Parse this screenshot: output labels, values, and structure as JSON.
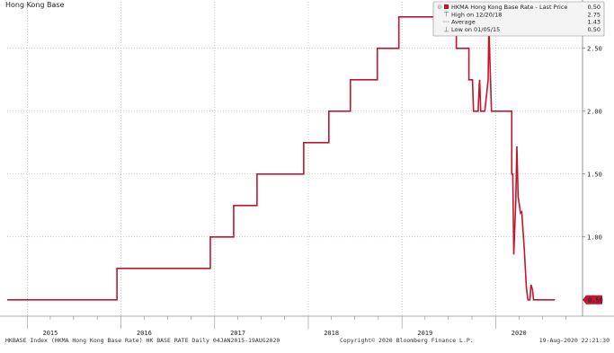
{
  "top_label": "Hong Kong Base",
  "legend": {
    "entries": [
      {
        "name": "HKMA Hong Kong Base Rate - Last Price",
        "value": "0.50",
        "marker": "swatch"
      },
      {
        "name": "High on 12/20/18",
        "value": "2.75",
        "marker": "high-marker-icon"
      },
      {
        "name": "Average",
        "value": "1.43",
        "marker": "average-marker-icon"
      },
      {
        "name": "Low on 01/05/15",
        "value": "0.50",
        "marker": "low-marker-icon"
      }
    ]
  },
  "footer": {
    "left": "HKBASE Index (HKMA Hong Kong Base Rate) HK BASE RATE  Daily 04JAN2015-19AUG2020",
    "center": "Copyright© 2020 Bloomberg Finance L.P.",
    "right": "19-Aug-2020 22:21:30"
  },
  "colors": {
    "series": "#c0172e",
    "grid": "#9a9a9a",
    "last_tag_bg": "#c0172e",
    "last_tag_text": "#ffffff",
    "legend_bg": "#f4f4f4",
    "legend_border": "#8a8a8a"
  },
  "chart_data": {
    "type": "line",
    "title": "",
    "xlabel": "",
    "ylabel": "",
    "xlim": [
      "2014-10-15",
      "2020-12-05"
    ],
    "ylim": [
      0.37,
      2.87
    ],
    "x_ticks": [
      {
        "label": "2015",
        "date": "2015-04-01"
      },
      {
        "label": "2016",
        "date": "2016-04-01"
      },
      {
        "label": "2017",
        "date": "2017-04-01"
      },
      {
        "label": "2018",
        "date": "2018-04-01"
      },
      {
        "label": "2019",
        "date": "2019-04-01"
      },
      {
        "label": "2020",
        "date": "2020-04-01"
      }
    ],
    "y_ticks": [
      {
        "label": "2.50",
        "value": 2.5
      },
      {
        "label": "2.00",
        "value": 2.0
      },
      {
        "label": "1.50",
        "value": 1.5
      },
      {
        "label": "1.00",
        "value": 1.0
      }
    ],
    "last_value_label": "0.50",
    "last_value": 0.5,
    "grid": true,
    "legend_position": "top-right",
    "series": [
      {
        "name": "HKMA Hong Kong Base Rate - Last Price",
        "color": "#c0172e",
        "points": [
          [
            "2014-10-15",
            0.5
          ],
          [
            "2015-12-17",
            0.5
          ],
          [
            "2015-12-17",
            0.75
          ],
          [
            "2016-12-15",
            0.75
          ],
          [
            "2016-12-15",
            1.0
          ],
          [
            "2017-03-16",
            1.0
          ],
          [
            "2017-03-16",
            1.25
          ],
          [
            "2017-06-15",
            1.25
          ],
          [
            "2017-06-15",
            1.5
          ],
          [
            "2017-12-14",
            1.5
          ],
          [
            "2017-12-14",
            1.75
          ],
          [
            "2018-03-22",
            1.75
          ],
          [
            "2018-03-22",
            2.0
          ],
          [
            "2018-06-14",
            2.0
          ],
          [
            "2018-06-14",
            2.25
          ],
          [
            "2018-09-27",
            2.25
          ],
          [
            "2018-09-27",
            2.5
          ],
          [
            "2018-12-20",
            2.5
          ],
          [
            "2018-12-20",
            2.75
          ],
          [
            "2019-08-01",
            2.75
          ],
          [
            "2019-08-01",
            2.5
          ],
          [
            "2019-09-19",
            2.5
          ],
          [
            "2019-09-19",
            2.25
          ],
          [
            "2019-10-03",
            2.25
          ],
          [
            "2019-10-07",
            2.0
          ],
          [
            "2019-10-25",
            2.0
          ],
          [
            "2019-10-29",
            2.2
          ],
          [
            "2019-10-31",
            2.25
          ],
          [
            "2019-11-04",
            2.0
          ],
          [
            "2019-11-20",
            2.0
          ],
          [
            "2019-12-03",
            2.25
          ],
          [
            "2019-12-06",
            2.7
          ],
          [
            "2019-12-10",
            2.4
          ],
          [
            "2019-12-16",
            2.0
          ],
          [
            "2020-02-21",
            2.0
          ],
          [
            "2020-03-04",
            2.0
          ],
          [
            "2020-03-04",
            1.5
          ],
          [
            "2020-03-08",
            1.5
          ],
          [
            "2020-03-12",
            0.86
          ],
          [
            "2020-03-20",
            1.3
          ],
          [
            "2020-03-24",
            1.72
          ],
          [
            "2020-03-29",
            1.32
          ],
          [
            "2020-04-03",
            1.25
          ],
          [
            "2020-04-07",
            1.19
          ],
          [
            "2020-04-12",
            1.2
          ],
          [
            "2020-04-22",
            0.9
          ],
          [
            "2020-04-30",
            0.6
          ],
          [
            "2020-05-06",
            0.5
          ],
          [
            "2020-05-14",
            0.5
          ],
          [
            "2020-05-18",
            0.62
          ],
          [
            "2020-05-24",
            0.58
          ],
          [
            "2020-05-28",
            0.5
          ],
          [
            "2020-08-19",
            0.5
          ]
        ]
      }
    ]
  }
}
